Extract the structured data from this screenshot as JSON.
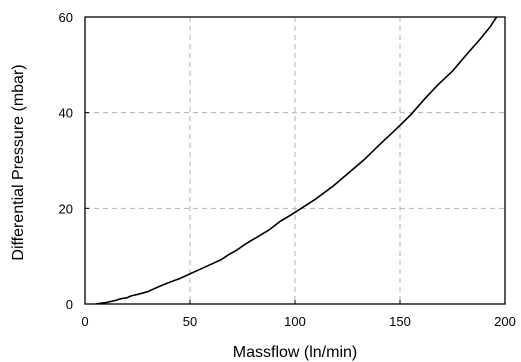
{
  "chart_data": {
    "type": "line",
    "title": "",
    "xlabel": "Massflow  (ln/min)",
    "ylabel": "Differential Pressure (mbar)",
    "xlim": [
      0,
      200
    ],
    "ylim": [
      0,
      60
    ],
    "x_ticks": [
      0,
      50,
      100,
      150,
      200
    ],
    "y_ticks": [
      0,
      20,
      40,
      60
    ],
    "x_tick_labels": [
      "0",
      "50",
      "100",
      "150",
      "200"
    ],
    "y_tick_labels": [
      "0",
      "20",
      "40",
      "60"
    ],
    "grid": true,
    "grid_style": "dashed",
    "legend": "none",
    "series": [
      {
        "color": "#000000",
        "x": [
          5,
          8,
          10,
          12,
          15,
          17,
          20,
          22,
          25,
          30,
          35,
          40,
          45,
          50,
          55,
          60,
          65,
          68,
          72,
          77,
          82,
          88,
          93,
          98,
          103,
          110,
          118,
          125,
          133,
          140,
          148,
          155,
          162,
          168,
          175,
          182,
          188,
          193,
          196
        ],
        "y": [
          0,
          0.2,
          0.3,
          0.5,
          0.8,
          1.1,
          1.3,
          1.7,
          2.0,
          2.6,
          3.6,
          4.5,
          5.3,
          6.3,
          7.3,
          8.3,
          9.3,
          10.2,
          11.2,
          12.7,
          14.0,
          15.6,
          17.3,
          18.6,
          20.0,
          22.0,
          24.6,
          27.2,
          30.2,
          33.2,
          36.5,
          39.5,
          43.0,
          45.8,
          48.7,
          52.3,
          55.3,
          58.0,
          60.0
        ]
      }
    ]
  }
}
